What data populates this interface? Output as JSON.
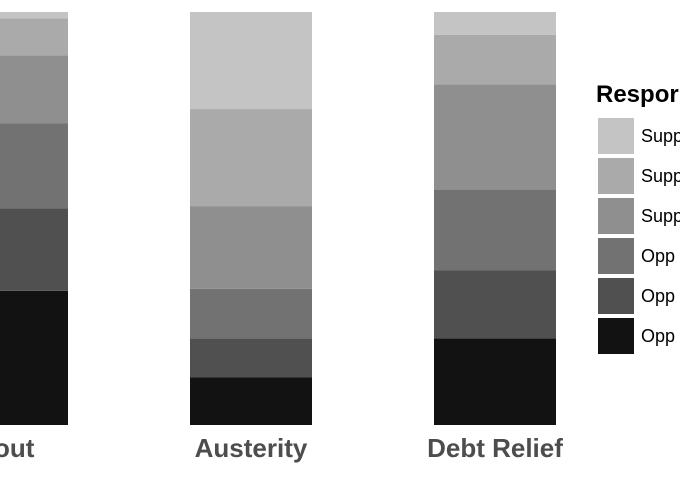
{
  "chart_data": {
    "type": "bar",
    "stacked": true,
    "orientation": "vertical",
    "categories": [
      "ilout",
      "Austerity",
      "Debt Relief"
    ],
    "ylim": [
      0,
      100
    ],
    "series": [
      {
        "name": "Opp",
        "color": "#121212",
        "values": [
          32.5,
          11.5,
          21.0
        ]
      },
      {
        "name": "Opp",
        "color": "#505050",
        "values": [
          20.0,
          9.5,
          16.5
        ]
      },
      {
        "name": "Opp",
        "color": "#727272",
        "values": [
          20.5,
          12.0,
          19.5
        ]
      },
      {
        "name": "Supp",
        "color": "#8f8f8f",
        "values": [
          16.5,
          20.0,
          25.5
        ]
      },
      {
        "name": "Supp",
        "color": "#aaaaaa",
        "values": [
          9.0,
          23.5,
          12.0
        ]
      },
      {
        "name": "Supp",
        "color": "#c4c4c4",
        "values": [
          1.5,
          23.5,
          5.5
        ]
      }
    ],
    "legend": {
      "title": "Respor",
      "position": "right",
      "entries": [
        {
          "label": "Supp",
          "color": "#c4c4c4"
        },
        {
          "label": "Supp",
          "color": "#aaaaaa"
        },
        {
          "label": "Supp",
          "color": "#8f8f8f"
        },
        {
          "label": "Opp",
          "color": "#727272"
        },
        {
          "label": "Opp",
          "color": "#505050"
        },
        {
          "label": "Opp",
          "color": "#121212"
        }
      ]
    },
    "grid": false
  }
}
